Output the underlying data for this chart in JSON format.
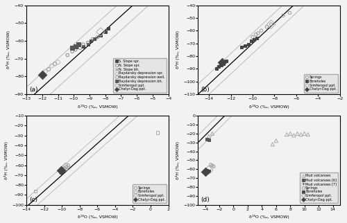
{
  "figsize": [
    5.0,
    3.22
  ],
  "dpi": 100,
  "background": "#f2f2f2",
  "lmwl_slope": 8,
  "lmwl_intercept": 10,
  "band_delta18O": 1,
  "panel_a": {
    "label": "(a)",
    "xlim": [
      -13,
      -4
    ],
    "ylim": [
      -90,
      -40
    ],
    "xticks": [
      -13,
      -12,
      -11,
      -10,
      -9,
      -8,
      -7,
      -6,
      -5,
      -4
    ],
    "yticks": [
      -90,
      -80,
      -70,
      -60,
      -50,
      -40
    ],
    "series": {
      "S_Slope_spr": {
        "x": [
          -9.4,
          -9.1,
          -8.9,
          -8.7,
          -8.3,
          -8.0,
          -7.8
        ],
        "y": [
          -63,
          -62,
          -60,
          -59,
          -57,
          -55,
          -53
        ],
        "marker": "s",
        "color": "#444444",
        "size": 12,
        "filled": true
      },
      "N_Slope_spr": {
        "x": [
          -10.4,
          -10.1,
          -9.9,
          -9.6,
          -9.4,
          -9.1,
          -8.8,
          -8.5
        ],
        "y": [
          -68,
          -66,
          -65,
          -64,
          -62,
          -61,
          -59,
          -58
        ],
        "marker": "o",
        "color": "#888888",
        "size": 10,
        "filled": false
      },
      "N_Slope_bh": {
        "x": [
          -10.2,
          -9.5
        ],
        "y": [
          -67,
          -62
        ],
        "marker": "x",
        "color": "#888888",
        "size": 12,
        "filled": false
      },
      "Baydarsky_dep_spr": {
        "x": [
          -11.8,
          -11.4,
          -11.0
        ],
        "y": [
          -77,
          -74,
          -72
        ],
        "marker": "o",
        "color": "#bbbbbb",
        "size": 18,
        "filled": false
      },
      "Baydarsky_dep_well": {
        "x": [
          -11.6,
          -11.2
        ],
        "y": [
          -76,
          -73
        ],
        "marker": "o",
        "color": "#999999",
        "size": 14,
        "filled": false
      },
      "Baydarsky_dep_bh": {
        "x": [
          -10.1,
          -9.9,
          -9.7
        ],
        "y": [
          -64,
          -63,
          -62
        ],
        "marker": "s",
        "color": "#555555",
        "size": 14,
        "filled": true
      },
      "Simferopol_ppt": {
        "x": [
          -8.3
        ],
        "y": [
          -55
        ],
        "marker": "D",
        "color": "#aaaaaa",
        "size": 40,
        "filled": false
      },
      "Chatyr_Dag_ppt": {
        "x": [
          -12.0
        ],
        "y": [
          -79
        ],
        "marker": "D",
        "color": "#444444",
        "size": 40,
        "filled": true
      }
    },
    "legend": [
      {
        "label": "S. Slope spr.",
        "marker": "s",
        "color": "#444444",
        "filled": true
      },
      {
        "label": "N. Slope spr.",
        "marker": "o",
        "color": "#888888",
        "filled": false
      },
      {
        "label": "N. Slope bh.",
        "marker": "x",
        "color": "#888888",
        "filled": false
      },
      {
        "label": "Baydarsky depression spr.",
        "marker": "o",
        "color": "#bbbbbb",
        "filled": false
      },
      {
        "label": "Baydarsky depression well.",
        "marker": "o",
        "color": "#999999",
        "filled": false
      },
      {
        "label": "Baydarsky depression bh.",
        "marker": "s",
        "color": "#555555",
        "filled": true
      },
      {
        "label": "Simferopol ppt.",
        "marker": "D",
        "color": "#aaaaaa",
        "filled": false
      },
      {
        "label": "Chatyr-Dag ppt.",
        "marker": "D",
        "color": "#444444",
        "filled": true
      }
    ]
  },
  "panel_b": {
    "label": "(b)",
    "xlim": [
      -15,
      -2
    ],
    "ylim": [
      -110,
      -40
    ],
    "xticks": [
      -14,
      -12,
      -10,
      -8,
      -6,
      -4,
      -2
    ],
    "yticks": [
      -110,
      -100,
      -90,
      -80,
      -70,
      -60,
      -50,
      -40
    ],
    "series": {
      "Springs": {
        "x": [
          -10.0,
          -9.7,
          -9.5,
          -9.2,
          -8.7,
          -8.3,
          -7.2,
          -6.6
        ],
        "y": [
          -65,
          -63,
          -62,
          -60,
          -57,
          -55,
          -48,
          -46
        ],
        "marker": "o",
        "color": "#999999",
        "size": 10,
        "filled": false
      },
      "Boreholes": {
        "x": [
          -13.3,
          -13.1,
          -12.9,
          -12.7,
          -12.4,
          -11.0,
          -10.7,
          -10.4,
          -10.1,
          -9.9,
          -9.6
        ],
        "y": [
          -90,
          -88,
          -87,
          -86,
          -84,
          -73,
          -72,
          -71,
          -68,
          -67,
          -66
        ],
        "marker": "s",
        "color": "#444444",
        "size": 12,
        "filled": true
      },
      "Simferopol_ppt": {
        "x": [
          -8.3
        ],
        "y": [
          -55
        ],
        "marker": "D",
        "color": "#aaaaaa",
        "size": 40,
        "filled": false
      },
      "Chatyr_Dag_ppt": {
        "x": [
          -12.8
        ],
        "y": [
          -85
        ],
        "marker": "D",
        "color": "#444444",
        "size": 40,
        "filled": true
      }
    },
    "legend": [
      {
        "label": "Springs",
        "marker": "o",
        "color": "#999999",
        "filled": false
      },
      {
        "label": "Boreholes",
        "marker": "s",
        "color": "#444444",
        "filled": true
      },
      {
        "label": "Simferopol ppt.",
        "marker": "D",
        "color": "#aaaaaa",
        "filled": false
      },
      {
        "label": "Chatyr-Dag ppt.",
        "marker": "D",
        "color": "#444444",
        "filled": true
      }
    ]
  },
  "panel_c": {
    "label": "(c)",
    "xlim": [
      -14,
      2
    ],
    "ylim": [
      -100,
      -10
    ],
    "xticks": [
      -14,
      -12,
      -10,
      -8,
      -6,
      -4,
      -2,
      0,
      2
    ],
    "yticks": [
      -100,
      -90,
      -80,
      -70,
      -60,
      -50,
      -40,
      -30,
      -20,
      -10
    ],
    "series": {
      "Springs": {
        "x": [
          -10.1,
          -9.9,
          -9.7,
          -9.5,
          -9.3
        ],
        "y": [
          -65,
          -64,
          -63,
          -62,
          -60
        ],
        "marker": "o",
        "color": "#999999",
        "size": 10,
        "filled": false
      },
      "Boreholes": {
        "x": [
          -10.2,
          -10.0,
          -9.8,
          -9.6,
          -13.0
        ],
        "y": [
          -67,
          -65,
          -64,
          -63,
          -86
        ],
        "marker": "s",
        "color": "#aaaaaa",
        "size": 10,
        "filled": false
      },
      "outlier_bh": {
        "x": [
          0.8
        ],
        "y": [
          -27
        ],
        "marker": "s",
        "color": "#aaaaaa",
        "size": 10,
        "filled": false
      },
      "Simferopol_ppt": {
        "x": [
          -9.6
        ],
        "y": [
          -62
        ],
        "marker": "D",
        "color": "#aaaaaa",
        "size": 40,
        "filled": false
      },
      "Chatyr_Dag_ppt": {
        "x": [
          -10.1
        ],
        "y": [
          -65
        ],
        "marker": "D",
        "color": "#444444",
        "size": 40,
        "filled": true
      }
    },
    "legend": [
      {
        "label": "Springs",
        "marker": "o",
        "color": "#999999",
        "filled": false
      },
      {
        "label": "Boreholes",
        "marker": "s",
        "color": "#aaaaaa",
        "filled": false
      },
      {
        "label": "Simferopol ppt.",
        "marker": "D",
        "color": "#aaaaaa",
        "filled": false
      },
      {
        "label": "Chatyr-Dag ppt.",
        "marker": "D",
        "color": "#444444",
        "filled": true
      }
    ]
  },
  "panel_d": {
    "label": "(d)",
    "xlim": [
      -5,
      15
    ],
    "ylim": [
      -100,
      0
    ],
    "xticks": [
      -4,
      -2,
      0,
      2,
      4,
      6,
      8,
      10,
      12,
      14
    ],
    "yticks": [
      -100,
      -90,
      -80,
      -70,
      -60,
      -50,
      -40,
      -30,
      -20,
      -10,
      0
    ],
    "series": {
      "Mud_volcanoes": {
        "x": [
          -3.5,
          -3.0,
          5.5,
          6.0,
          7.5,
          8.0,
          8.5,
          9.0,
          9.5,
          10.0,
          10.5
        ],
        "y": [
          -23,
          -20,
          -32,
          -28,
          -21,
          -20,
          -22,
          -20,
          -21,
          -20,
          -21
        ],
        "marker": "^",
        "color": "#aaaaaa",
        "size": 14,
        "filled": false
      },
      "Mud_volcanoes_6": {
        "x": [
          -3.8,
          -3.5
        ],
        "y": [
          -26,
          -27
        ],
        "marker": "s",
        "color": "#555555",
        "size": 12,
        "filled": true
      },
      "Mud_volcanoes_7": {
        "x": [
          -1.0,
          5.8,
          6.2,
          6.8,
          7.2,
          9.0,
          9.5,
          10.0
        ],
        "y": [
          -20,
          -20,
          -21,
          -21,
          -20,
          -22,
          -21,
          -20
        ],
        "marker": "+",
        "color": "#555555",
        "size": 14,
        "filled": false
      },
      "Springs": {
        "x": [
          -3.2,
          -3.0,
          -2.8
        ],
        "y": [
          -55,
          -56,
          -57
        ],
        "marker": "o",
        "color": "#999999",
        "size": 10,
        "filled": false
      },
      "Boreholes": {
        "x": [
          -3.8,
          -3.5
        ],
        "y": [
          -61,
          -62
        ],
        "marker": "s",
        "color": "#444444",
        "size": 12,
        "filled": true
      },
      "Simferopol_ppt": {
        "x": [
          -3.5
        ],
        "y": [
          -61
        ],
        "marker": "D",
        "color": "#aaaaaa",
        "size": 40,
        "filled": false
      },
      "Chatyr_Dag_ppt": {
        "x": [
          -4.0
        ],
        "y": [
          -63
        ],
        "marker": "D",
        "color": "#444444",
        "size": 40,
        "filled": true
      }
    },
    "legend": [
      {
        "label": "Mud volcanoes",
        "marker": "^",
        "color": "#aaaaaa",
        "filled": false
      },
      {
        "label": "Mud volcanoes [6]",
        "marker": "s",
        "color": "#555555",
        "filled": true
      },
      {
        "label": "Mud volcanoes [7]",
        "marker": "+",
        "color": "#555555",
        "filled": false
      },
      {
        "label": "Springs",
        "marker": "o",
        "color": "#999999",
        "filled": false
      },
      {
        "label": "Boreholes",
        "marker": "s",
        "color": "#444444",
        "filled": true
      },
      {
        "label": "Simferopol ppt.",
        "marker": "D",
        "color": "#aaaaaa",
        "filled": false
      },
      {
        "label": "Chatyr-Dag ppt.",
        "marker": "D",
        "color": "#444444",
        "filled": true
      }
    ]
  }
}
